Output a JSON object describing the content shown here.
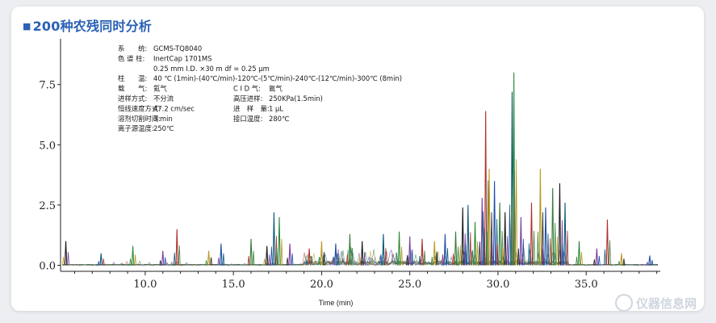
{
  "header": {
    "title": "200种农残同时分析"
  },
  "watermark": {
    "text": "仪器信息网"
  },
  "conditions": [
    [
      "系　　统:",
      "GCMS-TQ8040"
    ],
    [
      "色 谱 柱:",
      "InertCap 1701MS"
    ],
    [
      "",
      "0.25 mm I.D. ×30 m  df = 0.25 μm"
    ],
    [
      "柱　　温:",
      "40 ℃ (1min)-(40℃/min)-120℃-(5℃/min)-240℃-(12℃/min)-300℃ (8min)"
    ],
    [
      "载　　气:",
      "氦气",
      "C I D 气:",
      "氩气"
    ],
    [
      "进样方式:",
      "不分流",
      "高压进样:",
      "250KPa(1.5min)"
    ],
    [
      "恒线速度方式:",
      "47.2 cm/sec",
      "进　样　量:",
      "1 μL"
    ],
    [
      "溶剂切割时间:",
      "3 min",
      "接口温度:",
      "280℃"
    ],
    [
      "离子源温度:",
      "250℃"
    ]
  ],
  "chart_data": {
    "type": "line",
    "xlabel": "Time (min)",
    "ylabel": "",
    "xlim": [
      5.2,
      39.2
    ],
    "ylim": [
      -0.25,
      9.4
    ],
    "xticks": [
      "10.0",
      "15.0",
      "20.0",
      "25.0",
      "30.0",
      "35.0"
    ],
    "xtick_values": [
      10,
      15,
      20,
      25,
      30,
      35
    ],
    "yticks": [
      "0.0",
      "2.5",
      "5.0",
      "7.5"
    ],
    "ytick_values": [
      0,
      2.5,
      5,
      7.5
    ],
    "grid": false,
    "series_colors": [
      "#1a1a1a",
      "#0b5a7a",
      "#2e8b3a",
      "#7a3ea0",
      "#b03030",
      "#b89a20",
      "#1f4fa8",
      "#3a7a3a"
    ],
    "peaks": [
      {
        "x": 5.5,
        "y": 1.0
      },
      {
        "x": 7.5,
        "y": 0.5
      },
      {
        "x": 9.3,
        "y": 0.8
      },
      {
        "x": 11.0,
        "y": 0.6
      },
      {
        "x": 11.8,
        "y": 1.5
      },
      {
        "x": 13.6,
        "y": 0.6
      },
      {
        "x": 14.3,
        "y": 0.9
      },
      {
        "x": 16.0,
        "y": 1.1
      },
      {
        "x": 16.9,
        "y": 0.8
      },
      {
        "x": 17.3,
        "y": 2.2
      },
      {
        "x": 17.6,
        "y": 2.0
      },
      {
        "x": 18.2,
        "y": 0.9
      },
      {
        "x": 19.3,
        "y": 0.7
      },
      {
        "x": 20.0,
        "y": 1.0
      },
      {
        "x": 20.8,
        "y": 0.9
      },
      {
        "x": 21.6,
        "y": 1.3
      },
      {
        "x": 22.3,
        "y": 1.0
      },
      {
        "x": 23.5,
        "y": 1.3
      },
      {
        "x": 24.4,
        "y": 1.4
      },
      {
        "x": 25.0,
        "y": 1.2
      },
      {
        "x": 25.7,
        "y": 1.1
      },
      {
        "x": 26.4,
        "y": 1.0
      },
      {
        "x": 27.0,
        "y": 1.3
      },
      {
        "x": 27.6,
        "y": 1.4
      },
      {
        "x": 28.0,
        "y": 2.4
      },
      {
        "x": 28.3,
        "y": 2.5
      },
      {
        "x": 28.7,
        "y": 1.8
      },
      {
        "x": 29.1,
        "y": 2.8
      },
      {
        "x": 29.3,
        "y": 6.4
      },
      {
        "x": 29.5,
        "y": 4.0
      },
      {
        "x": 29.8,
        "y": 3.5
      },
      {
        "x": 30.1,
        "y": 2.6
      },
      {
        "x": 30.4,
        "y": 2.2
      },
      {
        "x": 30.8,
        "y": 7.2
      },
      {
        "x": 30.9,
        "y": 8.0
      },
      {
        "x": 31.3,
        "y": 2.0
      },
      {
        "x": 31.9,
        "y": 2.6
      },
      {
        "x": 32.4,
        "y": 4.0
      },
      {
        "x": 32.7,
        "y": 2.4
      },
      {
        "x": 33.1,
        "y": 3.2
      },
      {
        "x": 33.5,
        "y": 3.4
      },
      {
        "x": 33.8,
        "y": 2.6
      },
      {
        "x": 34.6,
        "y": 1.0
      },
      {
        "x": 35.6,
        "y": 0.7
      },
      {
        "x": 36.2,
        "y": 1.9
      },
      {
        "x": 37.0,
        "y": 0.5
      },
      {
        "x": 38.6,
        "y": 0.4
      }
    ]
  }
}
